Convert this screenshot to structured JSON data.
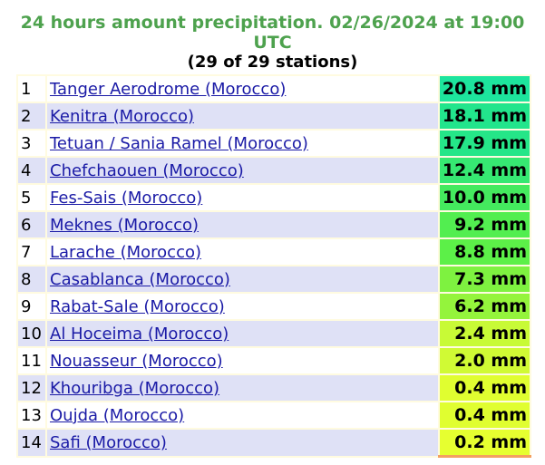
{
  "header": {
    "title": "24 hours amount precipitation. 02/26/2024 at 19:00 UTC",
    "subtitle": "(29 of 29 stations)"
  },
  "table": {
    "rows": [
      {
        "rank": "1",
        "station": "Tanger Aerodrome (Morocco)",
        "amount": "20.8 mm",
        "color": "#1de59d"
      },
      {
        "rank": "2",
        "station": "Kenitra (Morocco)",
        "amount": "18.1 mm",
        "color": "#22e58c"
      },
      {
        "rank": "3",
        "station": "Tetuan / Sania Ramel (Morocco)",
        "amount": "17.9 mm",
        "color": "#25e688"
      },
      {
        "rank": "4",
        "station": "Chefchaouen (Morocco)",
        "amount": "12.4 mm",
        "color": "#36e872"
      },
      {
        "rank": "5",
        "station": "Fes-Sais (Morocco)",
        "amount": "10.0 mm",
        "color": "#44ea5e"
      },
      {
        "rank": "6",
        "station": "Meknes (Morocco)",
        "amount": "9.2 mm",
        "color": "#52ee50"
      },
      {
        "rank": "7",
        "station": "Larache (Morocco)",
        "amount": "8.8 mm",
        "color": "#5cf048"
      },
      {
        "rank": "8",
        "station": "Casablanca (Morocco)",
        "amount": "7.3 mm",
        "color": "#7ef240"
      },
      {
        "rank": "9",
        "station": "Rabat-Sale (Morocco)",
        "amount": "6.2 mm",
        "color": "#94f43c"
      },
      {
        "rank": "10",
        "station": "Al Hoceima (Morocco)",
        "amount": "2.4 mm",
        "color": "#c8fa36"
      },
      {
        "rank": "11",
        "station": "Nouasseur (Morocco)",
        "amount": "2.0 mm",
        "color": "#d0fa34"
      },
      {
        "rank": "12",
        "station": "Khouribga (Morocco)",
        "amount": "0.4 mm",
        "color": "#e0fe30"
      },
      {
        "rank": "13",
        "station": "Oujda (Morocco)",
        "amount": "0.4 mm",
        "color": "#e0fe30"
      },
      {
        "rank": "14",
        "station": "Safi (Morocco)",
        "amount": "0.2 mm",
        "color": "#e6ff30"
      }
    ]
  }
}
